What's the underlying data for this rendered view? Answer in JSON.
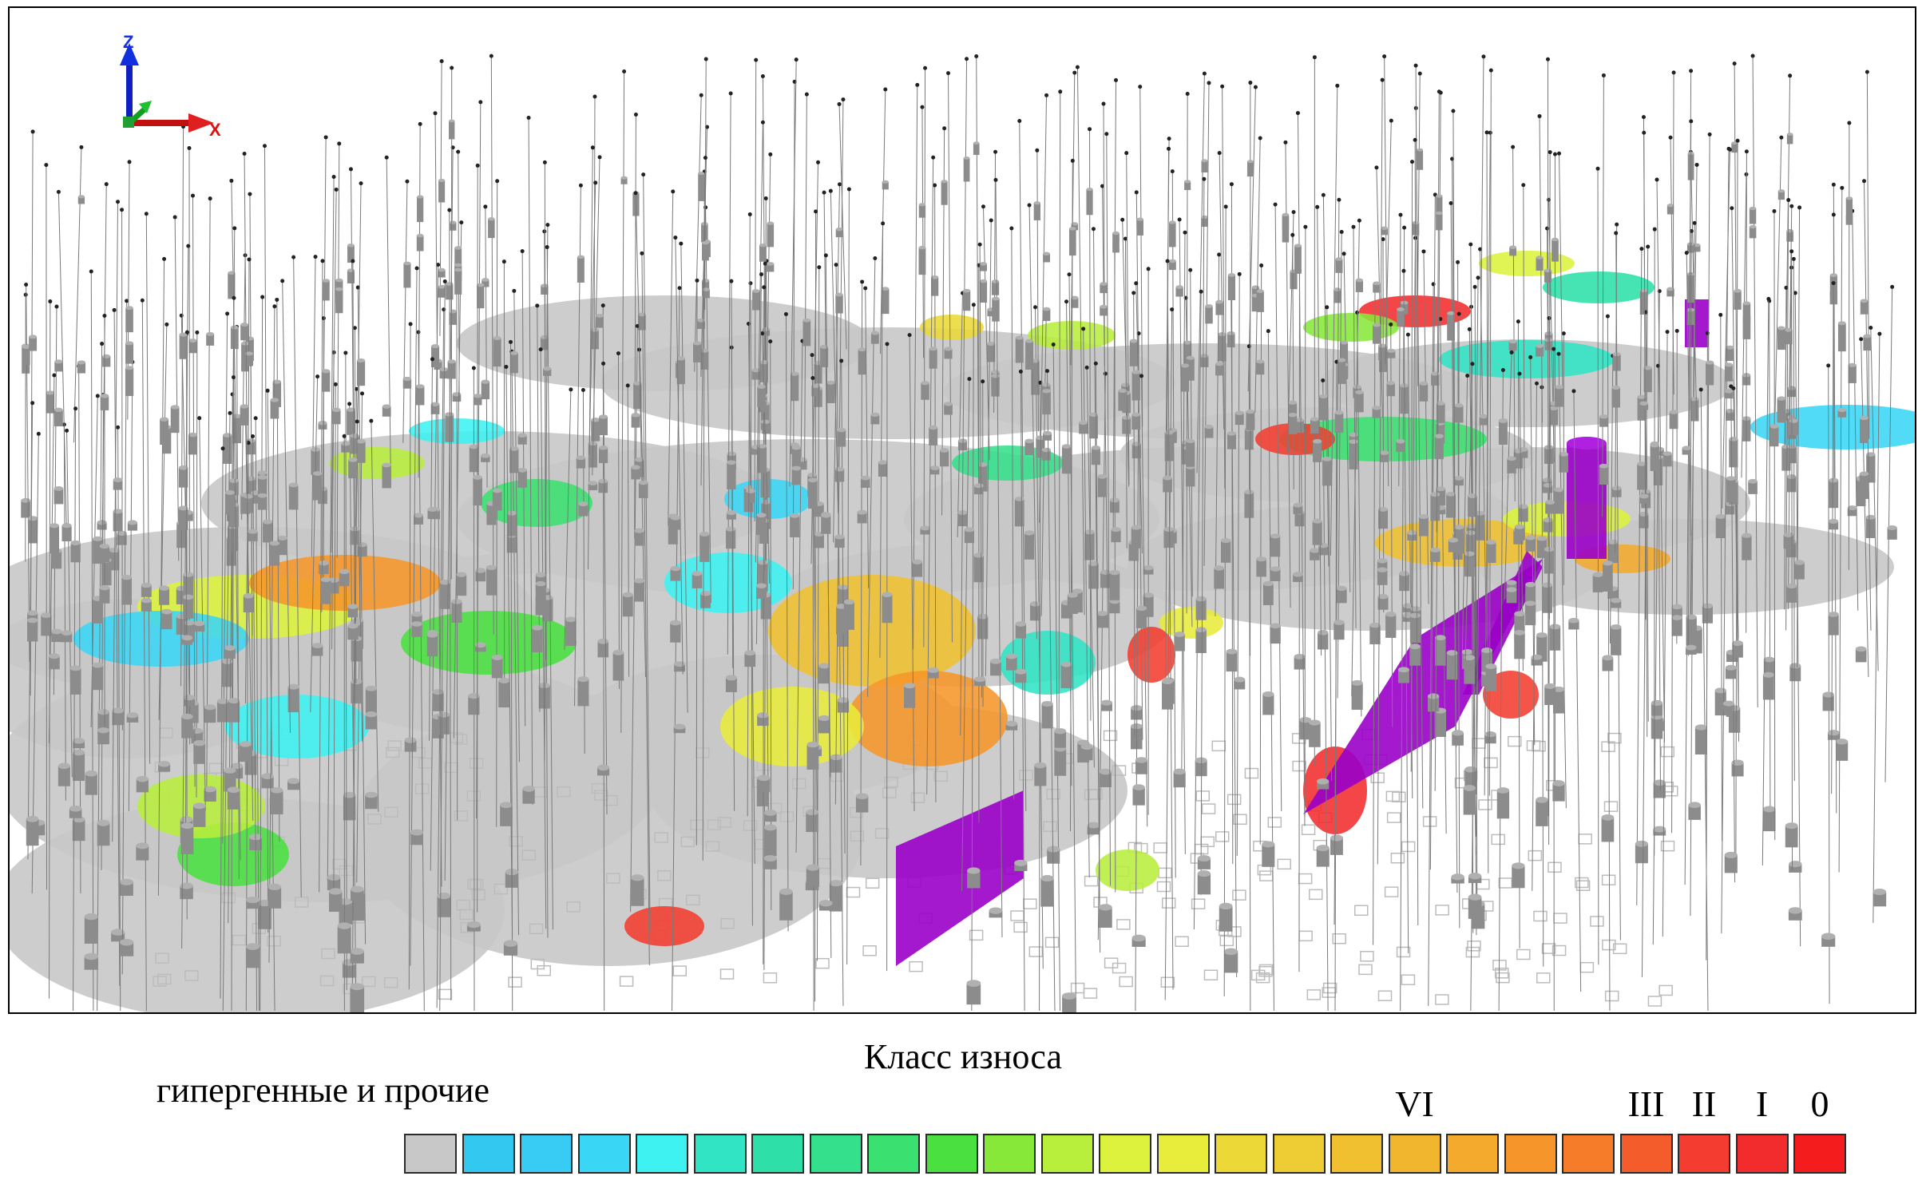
{
  "axes": {
    "z": "Z",
    "x": "X"
  },
  "legend": {
    "title": "Класс износа",
    "other_label": "гипергенные и прочие",
    "other_color": "#c8c8c8",
    "class_marks": [
      {
        "label": "VI",
        "swatch_index": 17
      },
      {
        "label": "III",
        "swatch_index": 21
      },
      {
        "label": "II",
        "swatch_index": 22
      },
      {
        "label": "I",
        "swatch_index": 23
      },
      {
        "label": "0",
        "swatch_index": 24
      }
    ],
    "colors": [
      "#c8c8c8",
      "#33c8f0",
      "#38ccf4",
      "#3ad6f6",
      "#3ef2f2",
      "#30e4c4",
      "#2ee0a8",
      "#34e08c",
      "#3ae070",
      "#4ae040",
      "#88e83a",
      "#b8ee3c",
      "#dcf23c",
      "#e8ec3a",
      "#ecd836",
      "#eecc34",
      "#f0c030",
      "#f2b62e",
      "#f4aa2c",
      "#f6962a",
      "#f67c2a",
      "#f45c2c",
      "#f43c30",
      "#f22c2c",
      "#f41c1c"
    ]
  },
  "scene": {
    "accent_colors": {
      "ore_body": "#9a00c8",
      "borehole": "#8a8a8a",
      "grid": "#b4b4b4"
    }
  }
}
